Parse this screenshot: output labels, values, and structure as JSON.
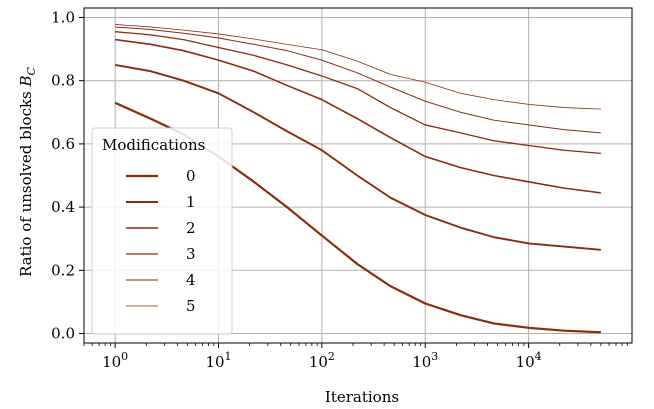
{
  "chart_data": {
    "type": "line",
    "xlabel": "Iterations",
    "ylabel": "Ratio of unsolved blocks ",
    "ylabel_symbol": "B",
    "ylabel_subscript": "C",
    "x_scale": "log",
    "xlim": [
      0.5,
      100000
    ],
    "ylim": [
      -0.03,
      1.03
    ],
    "grid": true,
    "x_ticks": [
      1,
      10,
      100,
      1000,
      10000
    ],
    "x_tick_labels": [
      {
        "base": "10",
        "exp": "0"
      },
      {
        "base": "10",
        "exp": "1"
      },
      {
        "base": "10",
        "exp": "2"
      },
      {
        "base": "10",
        "exp": "3"
      },
      {
        "base": "10",
        "exp": "4"
      }
    ],
    "y_ticks": [
      0.0,
      0.2,
      0.4,
      0.6,
      0.8,
      1.0
    ],
    "y_tick_labels": [
      "0.0",
      "0.2",
      "0.4",
      "0.6",
      "0.8",
      "1.0"
    ],
    "legend": {
      "title": "Modifications",
      "placement": "center-left"
    },
    "x": [
      1,
      2.2,
      4.6,
      10,
      22,
      46,
      100,
      220,
      460,
      1000,
      2200,
      4600,
      10000,
      22000,
      50000
    ],
    "series": [
      {
        "name": "0",
        "color": "#8B2A0E",
        "values": [
          0.73,
          0.68,
          0.63,
          0.56,
          0.48,
          0.4,
          0.31,
          0.22,
          0.15,
          0.095,
          0.058,
          0.032,
          0.018,
          0.009,
          0.004
        ]
      },
      {
        "name": "1",
        "color": "#8B2A0E",
        "values": [
          0.85,
          0.83,
          0.8,
          0.76,
          0.7,
          0.64,
          0.58,
          0.5,
          0.43,
          0.375,
          0.335,
          0.305,
          0.285,
          0.275,
          0.265
        ]
      },
      {
        "name": "2",
        "color": "#8B2A0E",
        "values": [
          0.93,
          0.915,
          0.895,
          0.865,
          0.83,
          0.785,
          0.74,
          0.68,
          0.62,
          0.56,
          0.525,
          0.5,
          0.48,
          0.46,
          0.445
        ]
      },
      {
        "name": "3",
        "color": "#8B2A0E",
        "values": [
          0.955,
          0.945,
          0.93,
          0.905,
          0.88,
          0.85,
          0.815,
          0.775,
          0.715,
          0.66,
          0.635,
          0.61,
          0.595,
          0.58,
          0.57
        ]
      },
      {
        "name": "4",
        "color": "#8B2A0E",
        "values": [
          0.97,
          0.962,
          0.95,
          0.935,
          0.915,
          0.895,
          0.865,
          0.825,
          0.78,
          0.735,
          0.7,
          0.675,
          0.66,
          0.645,
          0.635
        ]
      },
      {
        "name": "5",
        "color": "#8B2A0E",
        "values": [
          0.978,
          0.97,
          0.96,
          0.948,
          0.932,
          0.915,
          0.898,
          0.862,
          0.82,
          0.795,
          0.76,
          0.74,
          0.725,
          0.715,
          0.71
        ]
      }
    ]
  }
}
